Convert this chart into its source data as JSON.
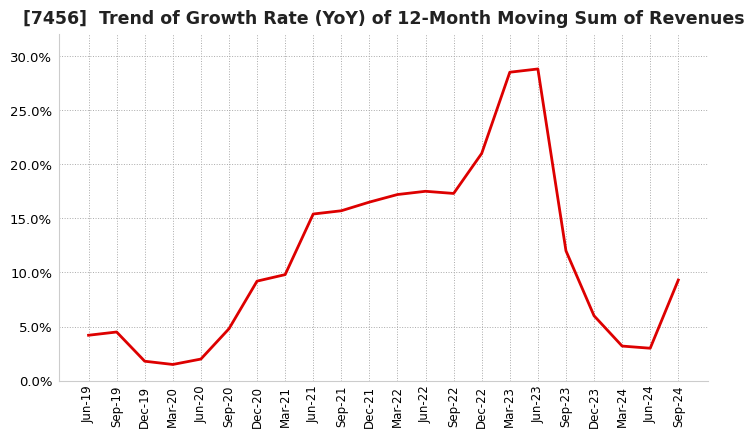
{
  "title": "[7456]  Trend of Growth Rate (YoY) of 12-Month Moving Sum of Revenues",
  "title_fontsize": 12.5,
  "line_color": "#dd0000",
  "background_color": "#ffffff",
  "plot_bg_color": "#ffffff",
  "grid_color": "#aaaaaa",
  "ylim": [
    0.0,
    0.32
  ],
  "yticks": [
    0.0,
    0.05,
    0.1,
    0.15,
    0.2,
    0.25,
    0.3
  ],
  "x_labels": [
    "Jun-19",
    "Sep-19",
    "Dec-19",
    "Mar-20",
    "Jun-20",
    "Sep-20",
    "Dec-20",
    "Mar-21",
    "Jun-21",
    "Sep-21",
    "Dec-21",
    "Mar-22",
    "Jun-22",
    "Sep-22",
    "Dec-22",
    "Mar-23",
    "Jun-23",
    "Sep-23",
    "Dec-23",
    "Mar-24",
    "Jun-24",
    "Sep-24"
  ],
  "values": [
    0.042,
    0.045,
    0.018,
    0.015,
    0.02,
    0.048,
    0.092,
    0.098,
    0.154,
    0.157,
    0.165,
    0.172,
    0.175,
    0.173,
    0.21,
    0.285,
    0.288,
    0.12,
    0.06,
    0.032,
    0.03,
    0.093
  ]
}
